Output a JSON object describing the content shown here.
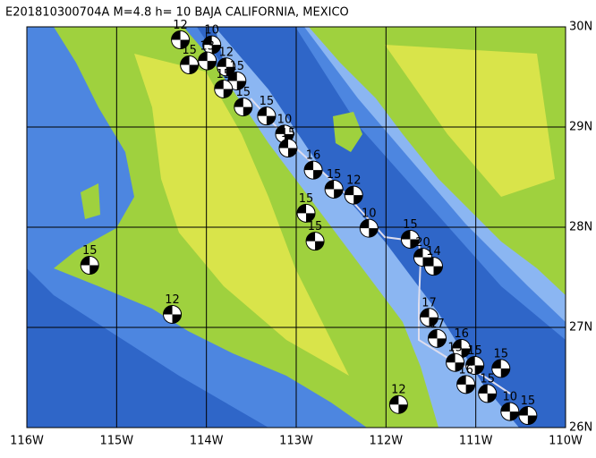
{
  "title": "E201810300704A M=4.8 h= 10 BAJA CALIFORNIA, MEXICO",
  "xlim": [
    -116,
    -110
  ],
  "ylim": [
    26,
    30
  ],
  "xticks": [
    {
      "value": -116,
      "label": "116W"
    },
    {
      "value": -115,
      "label": "115W"
    },
    {
      "value": -114,
      "label": "114W"
    },
    {
      "value": -113,
      "label": "113W"
    },
    {
      "value": -112,
      "label": "112W"
    },
    {
      "value": -111,
      "label": "111W"
    },
    {
      "value": -110,
      "label": "110W"
    }
  ],
  "yticks": [
    {
      "value": 30,
      "label": "30N"
    },
    {
      "value": 29,
      "label": "29N"
    },
    {
      "value": 28,
      "label": "28N"
    },
    {
      "value": 27,
      "label": "27N"
    },
    {
      "value": 26,
      "label": "26N"
    }
  ],
  "events": [
    {
      "lon": -114.29,
      "lat": 29.87,
      "depth": 12
    },
    {
      "lon": -113.94,
      "lat": 29.82,
      "depth": 10
    },
    {
      "lon": -114.19,
      "lat": 29.62,
      "depth": 15
    },
    {
      "lon": -113.99,
      "lat": 29.66,
      "depth": 13
    },
    {
      "lon": -113.78,
      "lat": 29.6,
      "depth": 12
    },
    {
      "lon": -113.66,
      "lat": 29.46,
      "depth": 15
    },
    {
      "lon": -113.81,
      "lat": 29.38,
      "depth": 15
    },
    {
      "lon": -113.59,
      "lat": 29.2,
      "depth": 15
    },
    {
      "lon": -113.33,
      "lat": 29.11,
      "depth": 15
    },
    {
      "lon": -113.13,
      "lat": 28.93,
      "depth": 10
    },
    {
      "lon": -113.09,
      "lat": 28.79,
      "depth": 15
    },
    {
      "lon": -112.81,
      "lat": 28.57,
      "depth": 16
    },
    {
      "lon": -112.58,
      "lat": 28.38,
      "depth": 15
    },
    {
      "lon": -112.36,
      "lat": 28.32,
      "depth": 12
    },
    {
      "lon": -112.89,
      "lat": 28.14,
      "depth": 15
    },
    {
      "lon": -112.19,
      "lat": 27.99,
      "depth": 10
    },
    {
      "lon": -112.79,
      "lat": 27.86,
      "depth": 15
    },
    {
      "lon": -115.3,
      "lat": 27.62,
      "depth": 15
    },
    {
      "lon": -114.38,
      "lat": 27.13,
      "depth": 12
    },
    {
      "lon": -111.73,
      "lat": 27.88,
      "depth": 15
    },
    {
      "lon": -111.59,
      "lat": 27.7,
      "depth": 20
    },
    {
      "lon": -111.47,
      "lat": 27.61,
      "depth": 14
    },
    {
      "lon": -111.52,
      "lat": 27.1,
      "depth": 17
    },
    {
      "lon": -111.43,
      "lat": 26.89,
      "depth": 17
    },
    {
      "lon": -111.16,
      "lat": 26.79,
      "depth": 16
    },
    {
      "lon": -111.23,
      "lat": 26.65,
      "depth": 15
    },
    {
      "lon": -111.01,
      "lat": 26.62,
      "depth": 15
    },
    {
      "lon": -110.72,
      "lat": 26.59,
      "depth": 15
    },
    {
      "lon": -111.11,
      "lat": 26.43,
      "depth": 16
    },
    {
      "lon": -110.87,
      "lat": 26.34,
      "depth": 15
    },
    {
      "lon": -110.62,
      "lat": 26.16,
      "depth": 10
    },
    {
      "lon": -110.42,
      "lat": 26.12,
      "depth": 15
    },
    {
      "lon": -111.86,
      "lat": 26.23,
      "depth": 12
    }
  ]
}
